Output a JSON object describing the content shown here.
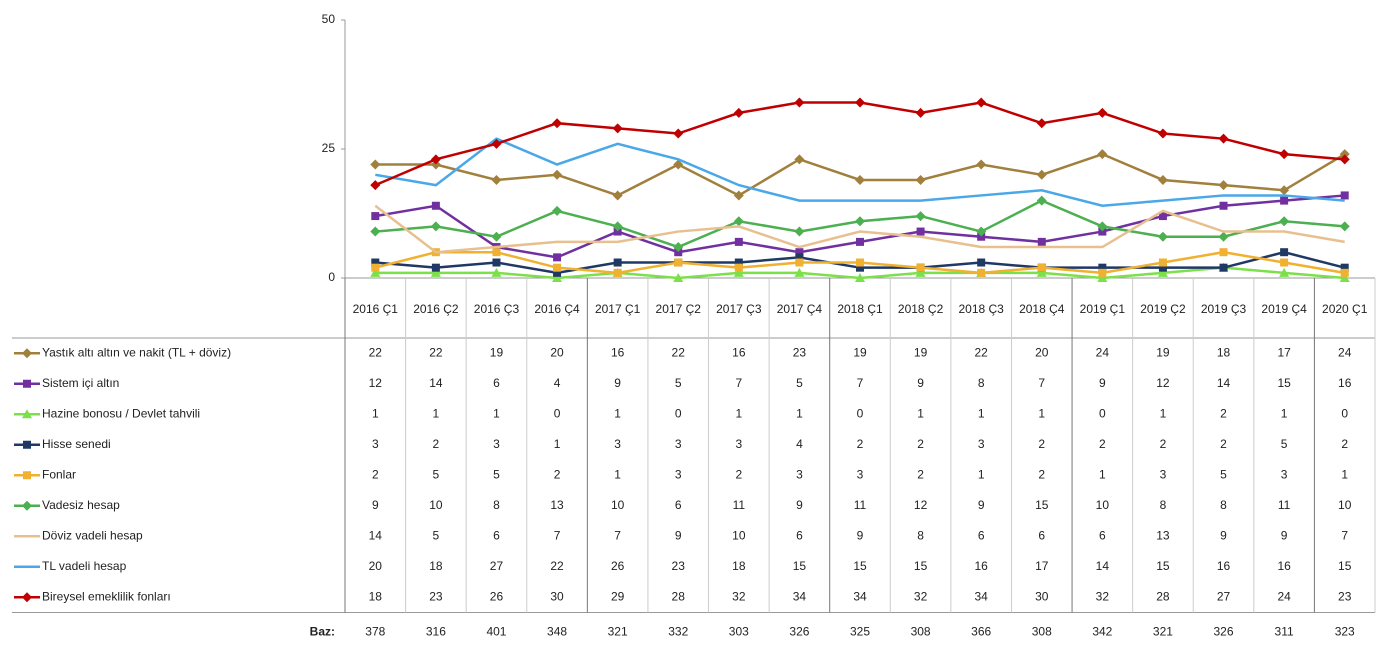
{
  "chart_data": {
    "type": "line",
    "categories": [
      "2016 Ç1",
      "2016 Ç2",
      "2016 Ç3",
      "2016 Ç4",
      "2017 Ç1",
      "2017 Ç2",
      "2017 Ç3",
      "2017 Ç4",
      "2018 Ç1",
      "2018 Ç2",
      "2018 Ç3",
      "2018 Ç4",
      "2019 Ç1",
      "2019 Ç2",
      "2019 Ç3",
      "2019 Ç4",
      "2020 Ç1"
    ],
    "ylim": [
      0,
      50
    ],
    "yticks": [
      0,
      25,
      50
    ],
    "series": [
      {
        "name": "Yastık altı altın ve nakit (TL + döviz)",
        "color": "#a0803c",
        "marker": "diamond",
        "values": [
          22,
          22,
          19,
          20,
          16,
          22,
          16,
          23,
          19,
          19,
          22,
          20,
          24,
          19,
          18,
          17,
          24
        ]
      },
      {
        "name": "Sistem içi altın",
        "color": "#7030a0",
        "marker": "square",
        "values": [
          12,
          14,
          6,
          4,
          9,
          5,
          7,
          5,
          7,
          9,
          8,
          7,
          9,
          12,
          14,
          15,
          16
        ]
      },
      {
        "name": "Hazine bonosu / Devlet tahvili",
        "color": "#7ce04a",
        "marker": "triangle",
        "values": [
          1,
          1,
          1,
          0,
          1,
          0,
          1,
          1,
          0,
          1,
          1,
          1,
          0,
          1,
          2,
          1,
          0
        ]
      },
      {
        "name": "Hisse senedi",
        "color": "#1f3864",
        "marker": "square",
        "values": [
          3,
          2,
          3,
          1,
          3,
          3,
          3,
          4,
          2,
          2,
          3,
          2,
          2,
          2,
          2,
          5,
          2
        ]
      },
      {
        "name": "Fonlar",
        "color": "#f0b030",
        "marker": "square",
        "values": [
          2,
          5,
          5,
          2,
          1,
          3,
          2,
          3,
          3,
          2,
          1,
          2,
          1,
          3,
          5,
          3,
          1
        ]
      },
      {
        "name": "Vadesiz hesap",
        "color": "#4caf50",
        "marker": "diamond",
        "values": [
          9,
          10,
          8,
          13,
          10,
          6,
          11,
          9,
          11,
          12,
          9,
          15,
          10,
          8,
          8,
          11,
          10
        ]
      },
      {
        "name": "Döviz vadeli hesap",
        "color": "#e8c090",
        "marker": null,
        "values": [
          14,
          5,
          6,
          7,
          7,
          9,
          10,
          6,
          9,
          8,
          6,
          6,
          6,
          13,
          9,
          9,
          7
        ]
      },
      {
        "name": "TL vadeli hesap",
        "color": "#4aa8e8",
        "marker": null,
        "values": [
          20,
          18,
          27,
          22,
          26,
          23,
          18,
          15,
          15,
          15,
          16,
          17,
          14,
          15,
          16,
          16,
          15
        ]
      },
      {
        "name": "Bireysel emeklilik fonları",
        "color": "#c00000",
        "marker": "diamond",
        "values": [
          18,
          23,
          26,
          30,
          29,
          28,
          32,
          34,
          34,
          32,
          34,
          30,
          32,
          28,
          27,
          24,
          23
        ]
      }
    ],
    "base_label": "Baz:",
    "base_values": [
      378,
      316,
      401,
      348,
      321,
      332,
      303,
      326,
      325,
      308,
      366,
      308,
      342,
      321,
      326,
      311,
      323
    ]
  }
}
